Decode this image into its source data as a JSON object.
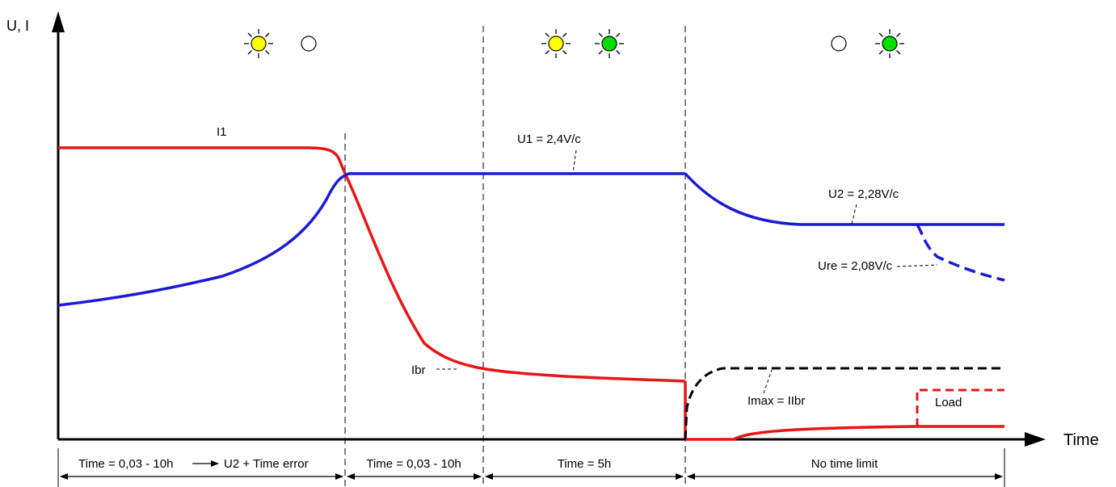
{
  "axes": {
    "y_label": "U, I",
    "x_label": "Time"
  },
  "curve_labels": {
    "i1": "I1",
    "u1": "U1 = 2,4V/c",
    "u2": "U2 = 2,28V/c",
    "ure": "Ure = 2,08V/c",
    "ibr": "Ibr",
    "imax": "Imax = IIbr",
    "load": "Load"
  },
  "phases": [
    {
      "label": "Time = 0,03 - 10h",
      "extra": "U2 + Time error"
    },
    {
      "label": "Time = 0,03 - 10h"
    },
    {
      "label": "Time = 5h"
    },
    {
      "label": "No time limit"
    }
  ],
  "lamp_groups": [
    {
      "lamps": [
        "yellow-on",
        "off"
      ]
    },
    {
      "lamps": [
        "yellow-on",
        "green-on"
      ]
    },
    {
      "lamps": [
        "off",
        "green-on"
      ]
    }
  ],
  "colors": {
    "voltage": "#1a1ad6",
    "current": "#e81515",
    "limit": "#000000",
    "yellow_lamp": "#ffff00",
    "green_lamp": "#00e000"
  }
}
